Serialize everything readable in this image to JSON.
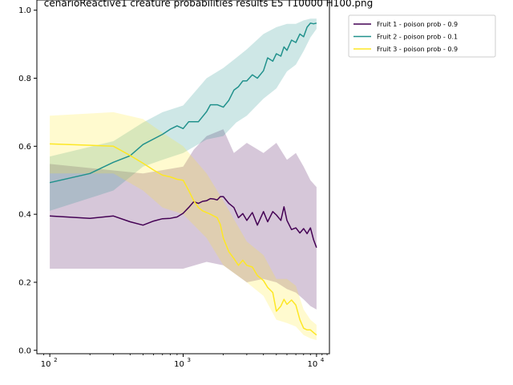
{
  "chart_data": {
    "type": "line",
    "title": "cenarioReactive1 creature probabilities results E5 T10000 H100.png",
    "xlabel": "",
    "ylabel": "",
    "xscale": "log",
    "xlim": [
      80,
      12500
    ],
    "ylim": [
      -0.01,
      1.03
    ],
    "x_ticks": [
      {
        "value": 100,
        "label": "10",
        "exp": "2"
      },
      {
        "value": 1000,
        "label": "10",
        "exp": "3"
      },
      {
        "value": 10000,
        "label": "10",
        "exp": "4"
      }
    ],
    "y_ticks": [
      "0.0",
      "0.2",
      "0.4",
      "0.6",
      "0.8",
      "1.0"
    ],
    "legend_position": "outside-top-right",
    "series": [
      {
        "name": "Fruit 1 - poison prob  - 0.9",
        "color": "#440154",
        "points": [
          [
            100,
            0.395
          ],
          [
            200,
            0.388
          ],
          [
            300,
            0.395
          ],
          [
            400,
            0.378
          ],
          [
            500,
            0.368
          ],
          [
            600,
            0.38
          ],
          [
            700,
            0.387
          ],
          [
            800,
            0.388
          ],
          [
            900,
            0.392
          ],
          [
            1000,
            0.403
          ],
          [
            1100,
            0.42
          ],
          [
            1200,
            0.437
          ],
          [
            1300,
            0.432
          ],
          [
            1400,
            0.438
          ],
          [
            1500,
            0.44
          ],
          [
            1600,
            0.446
          ],
          [
            1700,
            0.445
          ],
          [
            1800,
            0.442
          ],
          [
            1900,
            0.452
          ],
          [
            2000,
            0.452
          ],
          [
            2200,
            0.432
          ],
          [
            2400,
            0.42
          ],
          [
            2600,
            0.39
          ],
          [
            2800,
            0.402
          ],
          [
            3000,
            0.382
          ],
          [
            3300,
            0.405
          ],
          [
            3600,
            0.368
          ],
          [
            4000,
            0.408
          ],
          [
            4300,
            0.378
          ],
          [
            4700,
            0.408
          ],
          [
            5000,
            0.398
          ],
          [
            5400,
            0.382
          ],
          [
            5700,
            0.422
          ],
          [
            6000,
            0.382
          ],
          [
            6500,
            0.355
          ],
          [
            7000,
            0.36
          ],
          [
            7500,
            0.345
          ],
          [
            8000,
            0.358
          ],
          [
            8500,
            0.343
          ],
          [
            9000,
            0.36
          ],
          [
            9500,
            0.325
          ],
          [
            10000,
            0.302
          ]
        ],
        "band_upper": [
          [
            100,
            0.548
          ],
          [
            500,
            0.52
          ],
          [
            1000,
            0.54
          ],
          [
            1200,
            0.59
          ],
          [
            1500,
            0.63
          ],
          [
            2000,
            0.65
          ],
          [
            2400,
            0.58
          ],
          [
            3000,
            0.61
          ],
          [
            4000,
            0.58
          ],
          [
            5000,
            0.61
          ],
          [
            6000,
            0.56
          ],
          [
            7000,
            0.58
          ],
          [
            8000,
            0.54
          ],
          [
            9000,
            0.5
          ],
          [
            10000,
            0.48
          ]
        ],
        "band_lower": [
          [
            100,
            0.24
          ],
          [
            500,
            0.24
          ],
          [
            1000,
            0.24
          ],
          [
            1500,
            0.26
          ],
          [
            2000,
            0.25
          ],
          [
            3000,
            0.2
          ],
          [
            4000,
            0.21
          ],
          [
            5000,
            0.2
          ],
          [
            6000,
            0.18
          ],
          [
            7000,
            0.17
          ],
          [
            8000,
            0.15
          ],
          [
            9000,
            0.13
          ],
          [
            10000,
            0.12
          ]
        ]
      },
      {
        "name": "Fruit 2 - poison prob  - 0.1",
        "color": "#21918c",
        "points": [
          [
            100,
            0.493
          ],
          [
            200,
            0.52
          ],
          [
            300,
            0.553
          ],
          [
            400,
            0.572
          ],
          [
            500,
            0.605
          ],
          [
            700,
            0.635
          ],
          [
            800,
            0.65
          ],
          [
            900,
            0.66
          ],
          [
            1000,
            0.652
          ],
          [
            1100,
            0.672
          ],
          [
            1300,
            0.672
          ],
          [
            1500,
            0.702
          ],
          [
            1600,
            0.722
          ],
          [
            1800,
            0.722
          ],
          [
            2000,
            0.715
          ],
          [
            2200,
            0.735
          ],
          [
            2400,
            0.765
          ],
          [
            2600,
            0.775
          ],
          [
            2800,
            0.792
          ],
          [
            3000,
            0.792
          ],
          [
            3300,
            0.81
          ],
          [
            3600,
            0.8
          ],
          [
            4000,
            0.822
          ],
          [
            4300,
            0.86
          ],
          [
            4700,
            0.85
          ],
          [
            5000,
            0.872
          ],
          [
            5400,
            0.865
          ],
          [
            5700,
            0.892
          ],
          [
            6000,
            0.882
          ],
          [
            6500,
            0.912
          ],
          [
            7000,
            0.905
          ],
          [
            7500,
            0.93
          ],
          [
            8000,
            0.922
          ],
          [
            8500,
            0.95
          ],
          [
            9000,
            0.962
          ],
          [
            9500,
            0.96
          ],
          [
            10000,
            0.962
          ]
        ],
        "band_upper": [
          [
            100,
            0.57
          ],
          [
            300,
            0.615
          ],
          [
            500,
            0.67
          ],
          [
            700,
            0.7
          ],
          [
            1000,
            0.72
          ],
          [
            1500,
            0.8
          ],
          [
            2000,
            0.83
          ],
          [
            2500,
            0.86
          ],
          [
            3000,
            0.885
          ],
          [
            4000,
            0.93
          ],
          [
            5000,
            0.95
          ],
          [
            6000,
            0.96
          ],
          [
            7000,
            0.96
          ],
          [
            8000,
            0.97
          ],
          [
            9000,
            0.975
          ],
          [
            10000,
            0.975
          ]
        ],
        "band_lower": [
          [
            100,
            0.41
          ],
          [
            300,
            0.47
          ],
          [
            500,
            0.54
          ],
          [
            700,
            0.56
          ],
          [
            1000,
            0.58
          ],
          [
            1500,
            0.62
          ],
          [
            2000,
            0.63
          ],
          [
            2500,
            0.67
          ],
          [
            3000,
            0.69
          ],
          [
            4000,
            0.74
          ],
          [
            5000,
            0.77
          ],
          [
            6000,
            0.82
          ],
          [
            7000,
            0.84
          ],
          [
            8000,
            0.88
          ],
          [
            9000,
            0.92
          ],
          [
            10000,
            0.945
          ]
        ]
      },
      {
        "name": "Fruit 3 - poison prob  - 0.9",
        "color": "#fde725",
        "points": [
          [
            100,
            0.607
          ],
          [
            200,
            0.603
          ],
          [
            300,
            0.6
          ],
          [
            400,
            0.573
          ],
          [
            500,
            0.55
          ],
          [
            600,
            0.53
          ],
          [
            700,
            0.515
          ],
          [
            800,
            0.51
          ],
          [
            900,
            0.503
          ],
          [
            1000,
            0.5
          ],
          [
            1100,
            0.47
          ],
          [
            1200,
            0.44
          ],
          [
            1300,
            0.42
          ],
          [
            1400,
            0.41
          ],
          [
            1500,
            0.405
          ],
          [
            1600,
            0.4
          ],
          [
            1700,
            0.395
          ],
          [
            1800,
            0.39
          ],
          [
            1900,
            0.37
          ],
          [
            2000,
            0.33
          ],
          [
            2200,
            0.29
          ],
          [
            2400,
            0.27
          ],
          [
            2600,
            0.25
          ],
          [
            2800,
            0.265
          ],
          [
            3000,
            0.25
          ],
          [
            3300,
            0.245
          ],
          [
            3600,
            0.22
          ],
          [
            4000,
            0.205
          ],
          [
            4300,
            0.185
          ],
          [
            4700,
            0.17
          ],
          [
            5000,
            0.115
          ],
          [
            5400,
            0.13
          ],
          [
            5700,
            0.15
          ],
          [
            6000,
            0.135
          ],
          [
            6500,
            0.148
          ],
          [
            7000,
            0.133
          ],
          [
            7500,
            0.09
          ],
          [
            8000,
            0.065
          ],
          [
            8500,
            0.06
          ],
          [
            9000,
            0.06
          ],
          [
            9500,
            0.052
          ],
          [
            10000,
            0.045
          ]
        ],
        "band_upper": [
          [
            100,
            0.69
          ],
          [
            300,
            0.7
          ],
          [
            500,
            0.68
          ],
          [
            700,
            0.64
          ],
          [
            1000,
            0.6
          ],
          [
            1500,
            0.52
          ],
          [
            2000,
            0.44
          ],
          [
            3000,
            0.32
          ],
          [
            4000,
            0.28
          ],
          [
            5000,
            0.21
          ],
          [
            6000,
            0.21
          ],
          [
            7000,
            0.19
          ],
          [
            8000,
            0.12
          ],
          [
            9000,
            0.09
          ],
          [
            10000,
            0.075
          ]
        ],
        "band_lower": [
          [
            100,
            0.52
          ],
          [
            300,
            0.52
          ],
          [
            500,
            0.47
          ],
          [
            700,
            0.42
          ],
          [
            1000,
            0.4
          ],
          [
            1500,
            0.33
          ],
          [
            2000,
            0.25
          ],
          [
            3000,
            0.2
          ],
          [
            4000,
            0.16
          ],
          [
            5000,
            0.09
          ],
          [
            6000,
            0.08
          ],
          [
            7000,
            0.07
          ],
          [
            8000,
            0.045
          ],
          [
            9000,
            0.035
          ],
          [
            10000,
            0.03
          ]
        ]
      }
    ]
  }
}
